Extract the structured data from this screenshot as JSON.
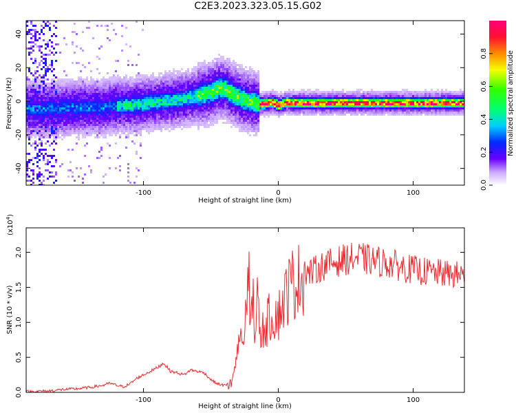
{
  "figure": {
    "title": "C2E3.2023.323.05.15.G02"
  },
  "chart_data": [
    {
      "type": "heatmap",
      "title": "",
      "xlabel": "Height of straight line (km)",
      "ylabel": "Frequency (Hz)",
      "xlim": [
        -187,
        138
      ],
      "ylim": [
        -50,
        48
      ],
      "xticks": [
        "-100",
        "0",
        "100"
      ],
      "yticks": [
        "-40",
        "-20",
        "0",
        "20",
        "40"
      ],
      "ridge": {
        "x": [
          -172,
          -160,
          -150,
          -140,
          -130,
          -120,
          -110,
          -100,
          -90,
          -80,
          -70,
          -60,
          -55,
          -50,
          -45,
          -40,
          -35,
          -30,
          -25,
          -20,
          -15,
          -10,
          -5,
          0,
          5,
          10,
          20,
          40,
          60,
          80,
          100,
          120,
          138
        ],
        "y": [
          -4,
          -4,
          -3,
          -3,
          -3,
          -2,
          -2,
          -1,
          0,
          1,
          2,
          4,
          5,
          6,
          8,
          8,
          5,
          3,
          1,
          0,
          -1,
          -1,
          0,
          -2,
          0,
          -0.5,
          -0.5,
          -0.5,
          -0.5,
          -0.5,
          -0.5,
          -0.5,
          -0.5
        ]
      },
      "colorbar": {
        "label": "Normalized spectral amplitude",
        "range": [
          0,
          1
        ],
        "ticks": [
          "0.0",
          "0.2",
          "0.4",
          "0.6",
          "0.8"
        ]
      }
    },
    {
      "type": "line",
      "title": "",
      "xlabel": "Height of straight line (km)",
      "ylabel": "SNR (10 * v/v)",
      "multiplier": "(x10",
      "multiplier_exp": "4",
      "multiplier_close": ")",
      "xlim": [
        -187,
        138
      ],
      "ylim": [
        0,
        2.35
      ],
      "xticks": [
        "-100",
        "0",
        "100"
      ],
      "yticks": [
        "0.0",
        "0.5",
        "1.0",
        "1.5",
        "2.0"
      ],
      "series": [
        {
          "color": "#e8292f",
          "x": [
            -187,
            -170,
            -160,
            -150,
            -140,
            -130,
            -125,
            -120,
            -115,
            -110,
            -105,
            -100,
            -95,
            -90,
            -85,
            -80,
            -75,
            -70,
            -65,
            -60,
            -55,
            -50,
            -45,
            -40,
            -35,
            -32,
            -30,
            -28,
            -26,
            -24,
            -22,
            -20,
            -18,
            -16,
            -14,
            -12,
            -10,
            -8,
            -6,
            -4,
            -2,
            0,
            2,
            4,
            6,
            8,
            10,
            15,
            20,
            25,
            30,
            35,
            40,
            50,
            60,
            70,
            80,
            90,
            100,
            110,
            120,
            130,
            138
          ],
          "values": [
            0.01,
            0.02,
            0.04,
            0.05,
            0.07,
            0.1,
            0.13,
            0.1,
            0.08,
            0.12,
            0.2,
            0.25,
            0.3,
            0.35,
            0.42,
            0.3,
            0.28,
            0.25,
            0.32,
            0.3,
            0.28,
            0.18,
            0.12,
            0.1,
            0.12,
            0.3,
            0.6,
            0.9,
            0.7,
            1.0,
            1.3,
            1.1,
            0.9,
            1.2,
            1.0,
            0.85,
            0.95,
            1.0,
            1.1,
            1.05,
            1.15,
            1.1,
            1.2,
            1.3,
            1.4,
            1.5,
            1.55,
            1.6,
            1.7,
            1.72,
            1.78,
            1.82,
            1.85,
            1.9,
            1.92,
            1.88,
            1.85,
            1.8,
            1.75,
            1.72,
            1.7,
            1.68,
            1.68
          ]
        }
      ]
    }
  ]
}
